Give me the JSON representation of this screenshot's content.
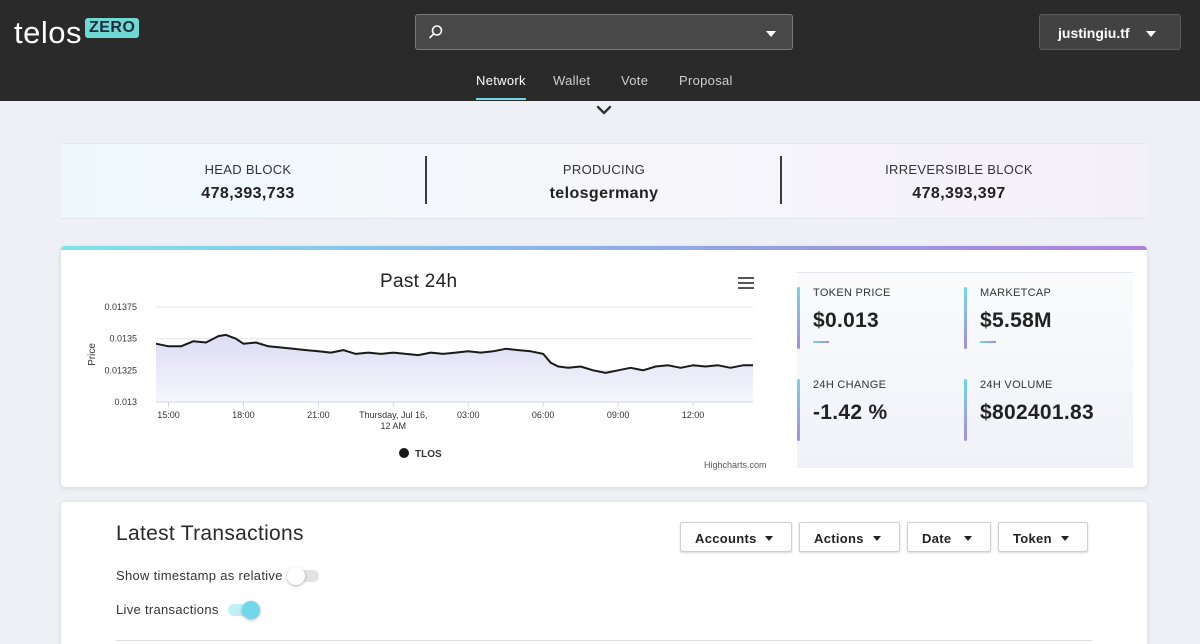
{
  "app": {
    "logo_text": "telos",
    "logo_badge": "ZERO"
  },
  "search": {
    "value": "",
    "placeholder": ""
  },
  "account": {
    "name": "justingiu.tf"
  },
  "nav": {
    "tabs": [
      {
        "label": "Network",
        "active": true
      },
      {
        "label": "Wallet",
        "active": false
      },
      {
        "label": "Vote",
        "active": false
      },
      {
        "label": "Proposal",
        "active": false
      }
    ]
  },
  "stats": {
    "head_block": {
      "label": "HEAD BLOCK",
      "value": "478,393,733"
    },
    "producing": {
      "label": "PRODUCING",
      "value": "telosgermany"
    },
    "irreversible_block": {
      "label": "IRREVERSIBLE BLOCK",
      "value": "478,393,397"
    }
  },
  "chart_card": {
    "credits": "Highcharts.com",
    "metrics": [
      {
        "label": "TOKEN PRICE",
        "value": "$0.013"
      },
      {
        "label": "MARKETCAP",
        "value": "$5.58M"
      },
      {
        "label": "24H CHANGE",
        "value": "-1.42 %"
      },
      {
        "label": "24H VOLUME",
        "value": "$802401.83"
      }
    ]
  },
  "chart_data": {
    "type": "area",
    "title": "Past 24h",
    "xlabel": "",
    "ylabel": "Price",
    "ylim": [
      0.013,
      0.01375
    ],
    "y_ticks": [
      "0.013",
      "0.01325",
      "0.0135",
      "0.01375"
    ],
    "x_ticks": [
      "15:00",
      "18:00",
      "21:00",
      "Thursday, Jul 16, 12 AM",
      "03:00",
      "06:00",
      "09:00",
      "12:00"
    ],
    "x_tick_hours": [
      15,
      18,
      21,
      24,
      27,
      30,
      33,
      36
    ],
    "xlim_hours": [
      14.5,
      38.4
    ],
    "grid": true,
    "legend": "bottom-center",
    "colors": {
      "line": "#1a1a1a",
      "fill_top": "#dcdcf5",
      "fill_bottom": "#f6f6fc"
    },
    "series": [
      {
        "name": "TLOS",
        "x_hours": [
          14.5,
          15.0,
          15.5,
          16.0,
          16.5,
          17.0,
          17.3,
          17.7,
          18.0,
          18.5,
          19.0,
          19.5,
          20.0,
          20.5,
          21.0,
          21.5,
          22.0,
          22.5,
          23.0,
          23.5,
          24.0,
          24.5,
          25.0,
          25.5,
          26.0,
          26.5,
          27.0,
          27.5,
          28.0,
          28.5,
          29.0,
          29.5,
          30.0,
          30.3,
          30.6,
          31.0,
          31.5,
          32.0,
          32.5,
          33.0,
          33.5,
          34.0,
          34.5,
          35.0,
          35.5,
          36.0,
          36.5,
          37.0,
          37.5,
          38.0,
          38.4
        ],
        "values": [
          0.01346,
          0.01344,
          0.01344,
          0.01348,
          0.01347,
          0.01352,
          0.01353,
          0.0135,
          0.01346,
          0.01347,
          0.01344,
          0.01343,
          0.01342,
          0.01341,
          0.0134,
          0.01339,
          0.01341,
          0.01338,
          0.01339,
          0.01338,
          0.01339,
          0.01338,
          0.01337,
          0.01339,
          0.01338,
          0.01339,
          0.0134,
          0.01339,
          0.0134,
          0.01342,
          0.01341,
          0.0134,
          0.01338,
          0.01331,
          0.01328,
          0.01327,
          0.01328,
          0.01325,
          0.01323,
          0.01325,
          0.01327,
          0.01325,
          0.01328,
          0.01329,
          0.01327,
          0.01329,
          0.01328,
          0.01329,
          0.01327,
          0.01329,
          0.01329
        ]
      }
    ]
  },
  "transactions": {
    "title": "Latest Transactions",
    "filters": [
      "Accounts",
      "Actions",
      "Date",
      "Token"
    ],
    "options": [
      {
        "label": "Show timestamp as relative",
        "on": false
      },
      {
        "label": "Live transactions",
        "on": true
      }
    ],
    "colors": {
      "toggle_on": "#6fd8ea",
      "toggle_off": "#e3e3e3"
    }
  }
}
